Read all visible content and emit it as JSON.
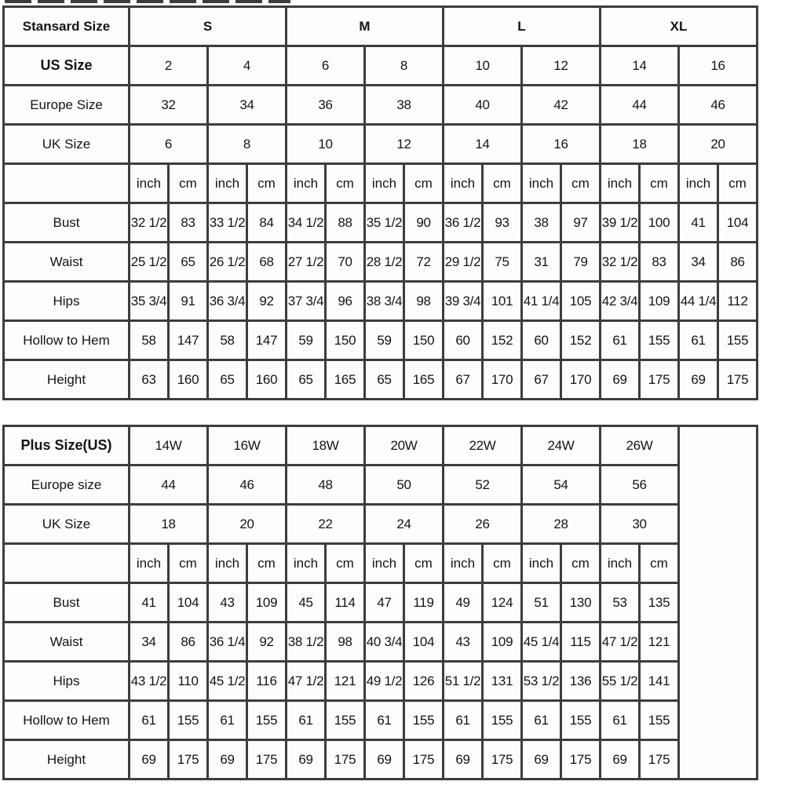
{
  "standard_table": {
    "corner_label": "Stansard Size",
    "size_groups": [
      "S",
      "M",
      "L",
      "XL"
    ],
    "size_rows": [
      {
        "label": "US Size",
        "bold": true,
        "values": [
          "2",
          "4",
          "6",
          "8",
          "10",
          "12",
          "14",
          "16"
        ]
      },
      {
        "label": "Europe Size",
        "bold": false,
        "values": [
          "32",
          "34",
          "36",
          "38",
          "40",
          "42",
          "44",
          "46"
        ]
      },
      {
        "label": "UK Size",
        "bold": false,
        "values": [
          "6",
          "8",
          "10",
          "12",
          "14",
          "16",
          "18",
          "20"
        ]
      }
    ],
    "unit_labels": [
      "inch",
      "cm"
    ],
    "unit_repeat": 8,
    "measurement_rows": [
      {
        "label": "Bust",
        "values": [
          "32 1/2",
          "83",
          "33 1/2",
          "84",
          "34 1/2",
          "88",
          "35 1/2",
          "90",
          "36 1/2",
          "93",
          "38",
          "97",
          "39 1/2",
          "100",
          "41",
          "104"
        ]
      },
      {
        "label": "Waist",
        "values": [
          "25 1/2",
          "65",
          "26 1/2",
          "68",
          "27 1/2",
          "70",
          "28 1/2",
          "72",
          "29 1/2",
          "75",
          "31",
          "79",
          "32 1/2",
          "83",
          "34",
          "86"
        ]
      },
      {
        "label": "Hips",
        "values": [
          "35 3/4",
          "91",
          "36 3/4",
          "92",
          "37 3/4",
          "96",
          "38 3/4",
          "98",
          "39 3/4",
          "101",
          "41 1/4",
          "105",
          "42 3/4",
          "109",
          "44 1/4",
          "112"
        ]
      },
      {
        "label": "Hollow to Hem",
        "values": [
          "58",
          "147",
          "58",
          "147",
          "59",
          "150",
          "59",
          "150",
          "60",
          "152",
          "60",
          "152",
          "61",
          "155",
          "61",
          "155"
        ]
      },
      {
        "label": "Height",
        "values": [
          "63",
          "160",
          "65",
          "160",
          "65",
          "165",
          "65",
          "165",
          "67",
          "170",
          "67",
          "170",
          "69",
          "175",
          "69",
          "175"
        ]
      }
    ]
  },
  "plus_table": {
    "size_rows": [
      {
        "label": "Plus Size(US)",
        "bold": true,
        "values": [
          "14W",
          "16W",
          "18W",
          "20W",
          "22W",
          "24W",
          "26W"
        ]
      },
      {
        "label": "Europe size",
        "bold": false,
        "values": [
          "44",
          "46",
          "48",
          "50",
          "52",
          "54",
          "56"
        ]
      },
      {
        "label": "UK Size",
        "bold": false,
        "values": [
          "18",
          "20",
          "22",
          "24",
          "26",
          "28",
          "30"
        ]
      }
    ],
    "unit_labels": [
      "inch",
      "cm"
    ],
    "unit_repeat": 7,
    "measurement_rows": [
      {
        "label": "Bust",
        "values": [
          "41",
          "104",
          "43",
          "109",
          "45",
          "114",
          "47",
          "119",
          "49",
          "124",
          "51",
          "130",
          "53",
          "135"
        ]
      },
      {
        "label": "Waist",
        "values": [
          "34",
          "86",
          "36 1/4",
          "92",
          "38 1/2",
          "98",
          "40 3/4",
          "104",
          "43",
          "109",
          "45 1/4",
          "115",
          "47 1/2",
          "121"
        ]
      },
      {
        "label": "Hips",
        "values": [
          "43 1/2",
          "110",
          "45 1/2",
          "116",
          "47 1/2",
          "121",
          "49 1/2",
          "126",
          "51 1/2",
          "131",
          "53 1/2",
          "136",
          "55 1/2",
          "141"
        ]
      },
      {
        "label": "Hollow to Hem",
        "values": [
          "61",
          "155",
          "61",
          "155",
          "61",
          "155",
          "61",
          "155",
          "61",
          "155",
          "61",
          "155",
          "61",
          "155"
        ]
      },
      {
        "label": "Height",
        "values": [
          "69",
          "175",
          "69",
          "175",
          "69",
          "175",
          "69",
          "175",
          "69",
          "175",
          "69",
          "175",
          "69",
          "175"
        ]
      }
    ],
    "has_trailing_empty_column": true
  },
  "colors": {
    "border": "#3d3d3d",
    "cell_background": "#fdfdfd",
    "text": "#141414"
  }
}
